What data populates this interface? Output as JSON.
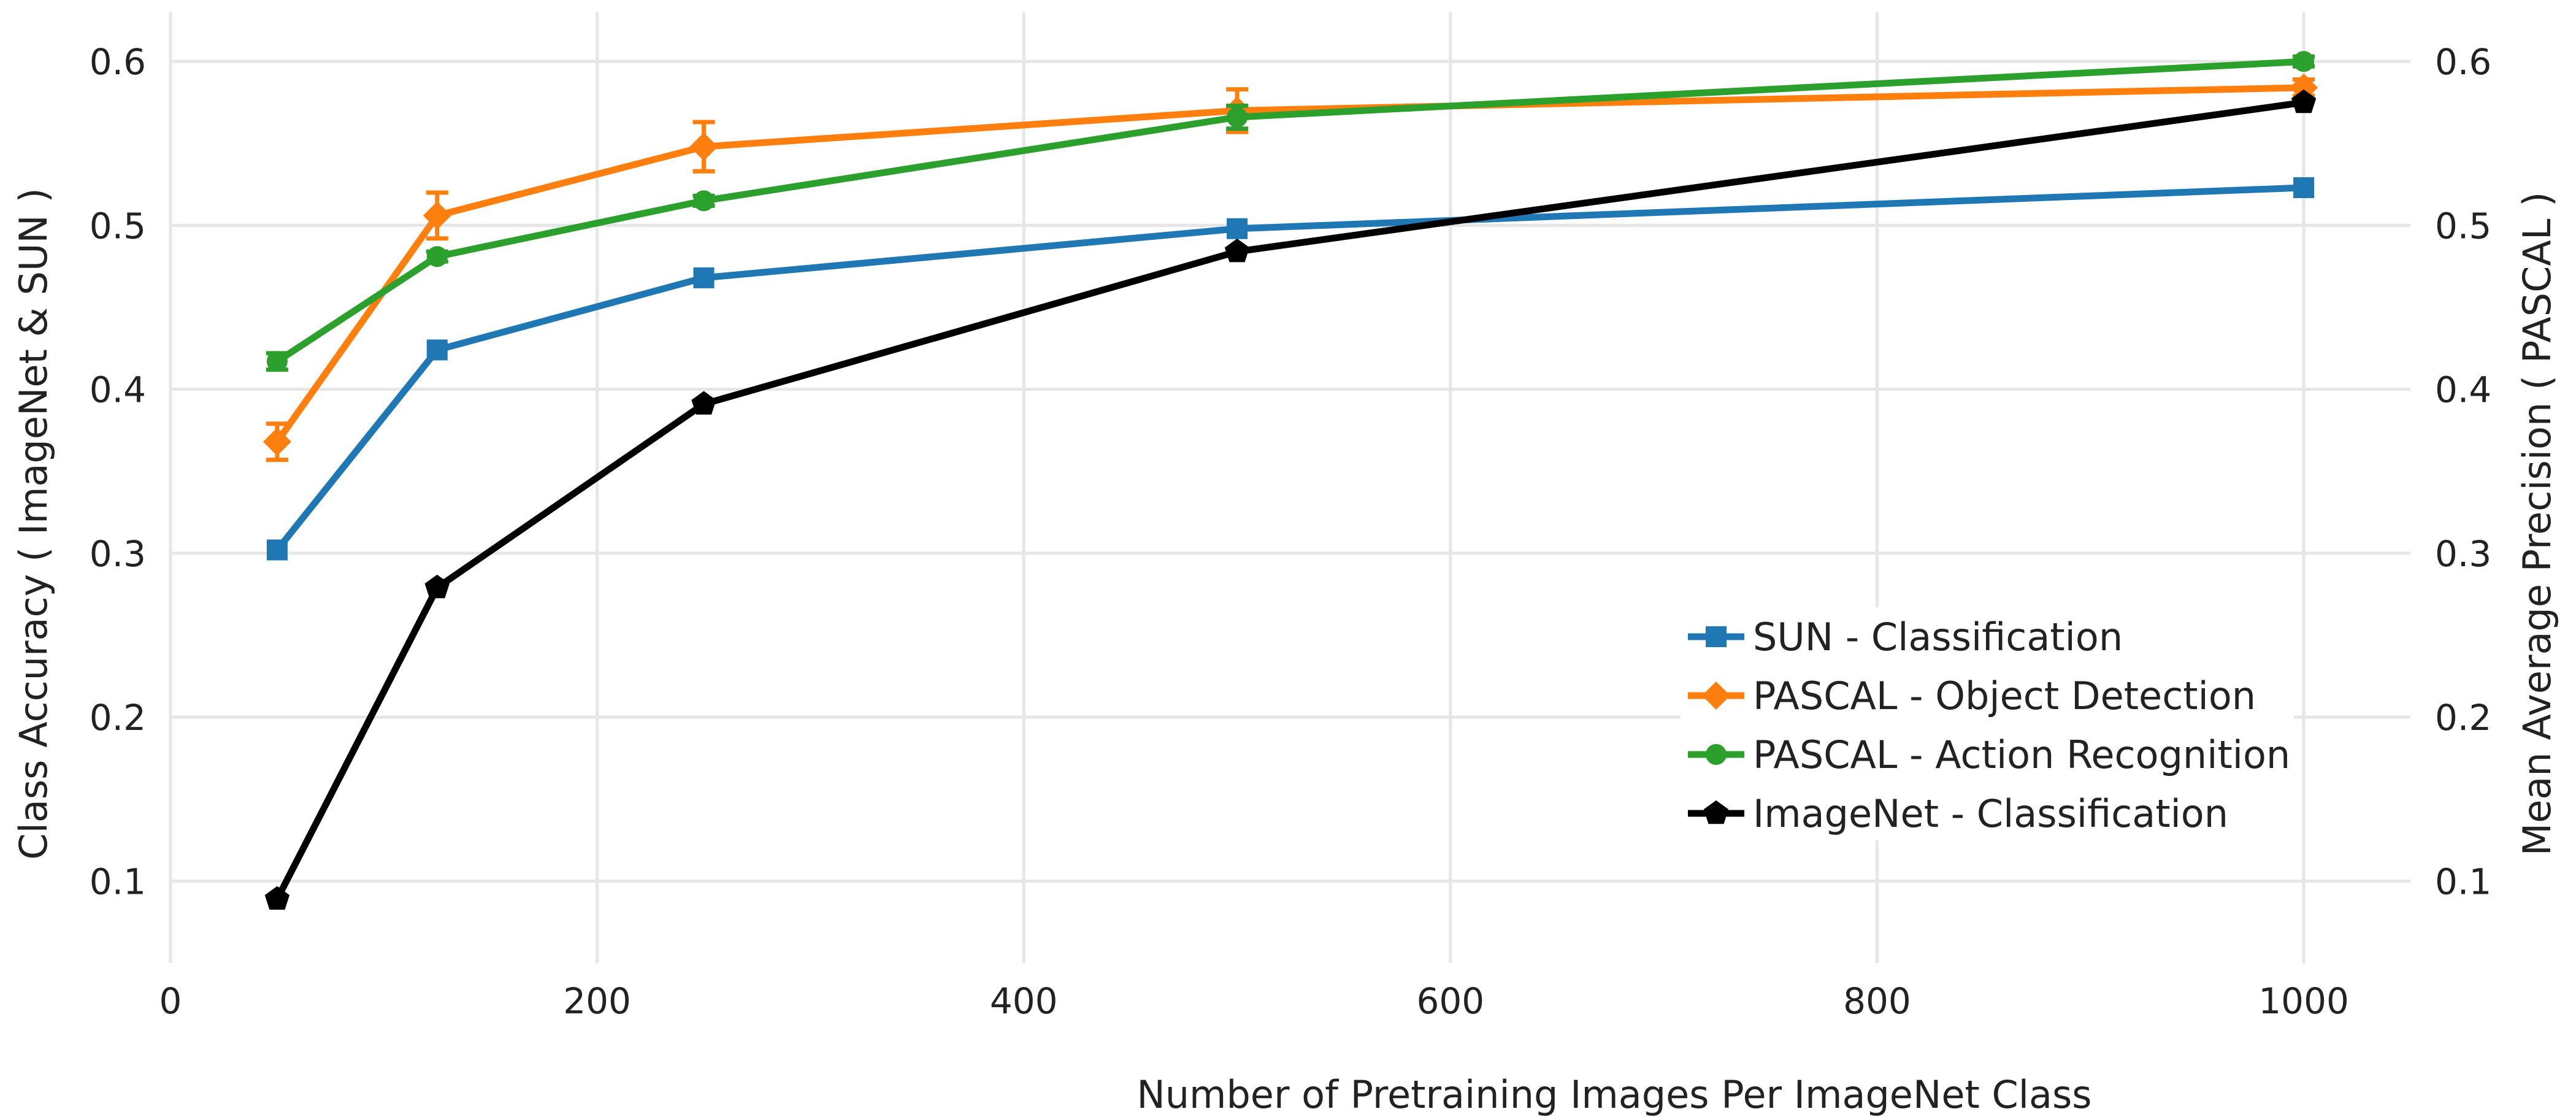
{
  "chart_data": {
    "type": "line",
    "title": "",
    "xlabel": "Number of Pretraining Images Per ImageNet Class",
    "ylabel_left": "Class Accuracy ( ImageNet & SUN )",
    "ylabel_right": "Mean Average Precision ( PASCAL )",
    "xlim": [
      0,
      1050
    ],
    "ylim": [
      0.05,
      0.63
    ],
    "x_ticks": [
      0,
      200,
      400,
      600,
      800,
      1000
    ],
    "x_tick_labels": [
      "0",
      "200",
      "400",
      "600",
      "800",
      "1000"
    ],
    "y_ticks": [
      0.1,
      0.2,
      0.3,
      0.4,
      0.5,
      0.6
    ],
    "y_tick_labels": [
      "0.1",
      "0.2",
      "0.3",
      "0.4",
      "0.5",
      "0.6"
    ],
    "grid": true,
    "legend_position": "bottom-right",
    "series": [
      {
        "name": "SUN - Classification",
        "color": "#1f77b4",
        "marker": "square",
        "x": [
          50,
          125,
          250,
          500,
          1000
        ],
        "y": [
          0.302,
          0.424,
          0.468,
          0.498,
          0.523
        ]
      },
      {
        "name": "PASCAL - Object Detection",
        "color": "#ff7f0e",
        "marker": "diamond",
        "x": [
          50,
          125,
          250,
          500,
          1000
        ],
        "y": [
          0.368,
          0.506,
          0.548,
          0.57,
          0.584
        ],
        "error": [
          0.011,
          0.014,
          0.015,
          0.013,
          0.005
        ]
      },
      {
        "name": "PASCAL - Action Recognition",
        "color": "#2ca02c",
        "marker": "circle",
        "x": [
          50,
          125,
          250,
          500,
          1000
        ],
        "y": [
          0.417,
          0.481,
          0.515,
          0.566,
          0.6
        ],
        "error": [
          0.005,
          0.003,
          0.003,
          0.007,
          0.003
        ]
      },
      {
        "name": "ImageNet - Classification",
        "color": "#000000",
        "marker": "pentagon",
        "x": [
          50,
          125,
          250,
          500,
          1000
        ],
        "y": [
          0.089,
          0.279,
          0.391,
          0.484,
          0.575
        ]
      }
    ]
  }
}
